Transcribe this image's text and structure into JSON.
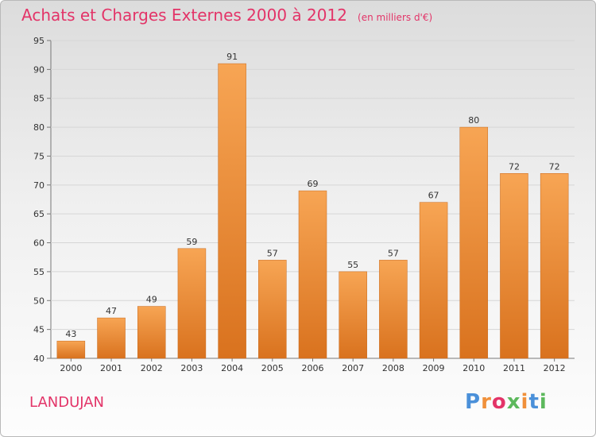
{
  "chart_data": {
    "type": "bar",
    "title": "Achats et Charges Externes 2000 à 2012",
    "unit": "(en milliers d'€)",
    "categories": [
      "2000",
      "2001",
      "2002",
      "2003",
      "2004",
      "2005",
      "2006",
      "2007",
      "2008",
      "2009",
      "2010",
      "2011",
      "2012"
    ],
    "values": [
      43,
      47,
      49,
      59,
      91,
      57,
      69,
      55,
      57,
      67,
      80,
      72,
      72
    ],
    "ylim": [
      40,
      95
    ],
    "yticks": [
      40,
      45,
      50,
      55,
      60,
      65,
      70,
      75,
      80,
      85,
      90,
      95
    ],
    "grid": true,
    "bar_color": "#f0903a"
  },
  "footer": {
    "commune": "LANDUJAN",
    "logo_letters": [
      {
        "ch": "P",
        "color": "#4a90d9"
      },
      {
        "ch": "r",
        "color": "#f0903a"
      },
      {
        "ch": "o",
        "color": "#e33468"
      },
      {
        "ch": "x",
        "color": "#5cb85c"
      },
      {
        "ch": "i",
        "color": "#f0903a"
      },
      {
        "ch": "t",
        "color": "#4a90d9"
      },
      {
        "ch": "i",
        "color": "#5cb85c"
      }
    ]
  }
}
